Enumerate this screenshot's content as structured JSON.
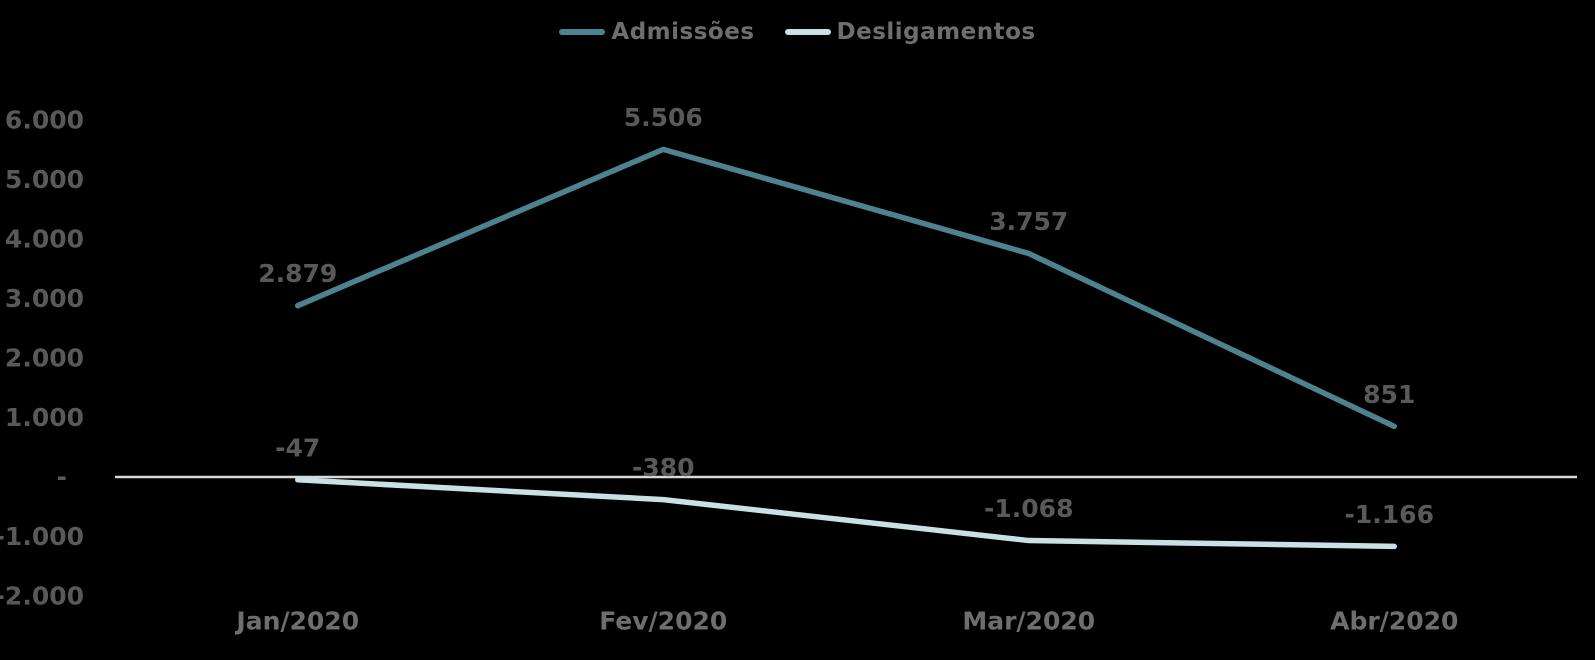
{
  "legend": {
    "items": [
      {
        "label": "Admissões",
        "color": "#4D8290"
      },
      {
        "label": "Desligamentos",
        "color": "#C9E1E6"
      }
    ]
  },
  "chart_data": {
    "type": "line",
    "title": "",
    "xlabel": "",
    "ylabel": "",
    "categories": [
      "Jan/2020",
      "Fev/2020",
      "Mar/2020",
      "Abr/2020"
    ],
    "series": [
      {
        "name": "Admissões",
        "color": "#4D8290",
        "values": [
          2879,
          5506,
          3757,
          851
        ],
        "labels": [
          "2.879",
          "5.506",
          "3.757",
          "851"
        ]
      },
      {
        "name": "Desligamentos",
        "color": "#C9E1E6",
        "values": [
          -47,
          -380,
          -1068,
          -1166
        ],
        "labels": [
          "-47",
          "-380",
          "-1.068",
          "-1.166"
        ]
      }
    ],
    "y_axis": {
      "min": -2000,
      "max": 6000,
      "step": 1000,
      "tick_values": [
        6000,
        5000,
        4000,
        3000,
        2000,
        1000,
        0,
        -1000,
        -2000
      ],
      "tick_labels": [
        "6.000",
        "5.000",
        "4.000",
        "3.000",
        "2.000",
        "1.000",
        "-",
        "-1.000",
        "-2.000"
      ]
    },
    "grid": false,
    "legend_position": "top",
    "background": "#000000",
    "axis_line_color": "#D9D9D9",
    "data_label_color": "#595959",
    "tick_label_color": "#595959",
    "category_label_color": "#6e6e6e"
  }
}
